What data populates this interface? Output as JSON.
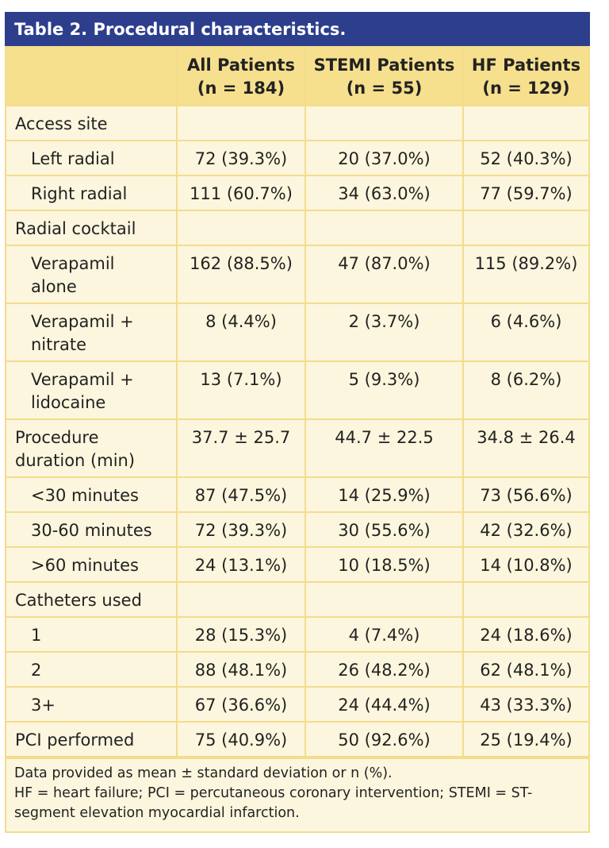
{
  "title": "Table 2. Procedural characteristics.",
  "header": [
    {
      "title": "All Patients",
      "n": "(n = 184)"
    },
    {
      "title": "STEMI Patients",
      "n": "(n = 55)"
    },
    {
      "title": "HF Patients",
      "n": "(n = 129)"
    }
  ],
  "sections": [
    {
      "label": "Access site",
      "rows": [
        {
          "label": "Left radial",
          "values": [
            "72 (39.3%)",
            "20 (37.0%)",
            "52 (40.3%)"
          ]
        },
        {
          "label": "Right radial",
          "values": [
            "111 (60.7%)",
            "34 (63.0%)",
            "77 (59.7%)"
          ]
        }
      ]
    },
    {
      "label": "Radial cocktail",
      "rows": [
        {
          "label": "Verapamil alone",
          "values": [
            "162 (88.5%)",
            "47 (87.0%)",
            "115 (89.2%)"
          ]
        },
        {
          "label": "Verapamil + nitrate",
          "values": [
            "8 (4.4%)",
            "2 (3.7%)",
            "6 (4.6%)"
          ]
        },
        {
          "label": "Verapamil + lidocaine",
          "values": [
            "13 (7.1%)",
            "5 (9.3%)",
            "8 (6.2%)"
          ]
        }
      ]
    },
    {
      "label": "Procedure duration (min)",
      "values": [
        "37.7 ± 25.7",
        "44.7 ± 22.5",
        "34.8 ± 26.4"
      ],
      "rows": [
        {
          "label": "<30 minutes",
          "values": [
            "87 (47.5%)",
            "14 (25.9%)",
            "73 (56.6%)"
          ]
        },
        {
          "label": "30-60 minutes",
          "values": [
            "72 (39.3%)",
            "30 (55.6%)",
            "42 (32.6%)"
          ]
        },
        {
          "label": ">60 minutes",
          "values": [
            "24 (13.1%)",
            "10 (18.5%)",
            "14 (10.8%)"
          ]
        }
      ]
    },
    {
      "label": "Catheters used",
      "rows": [
        {
          "label": "1",
          "values": [
            "28 (15.3%)",
            "4 (7.4%)",
            "24 (18.6%)"
          ]
        },
        {
          "label": "2",
          "values": [
            "88 (48.1%)",
            "26 (48.2%)",
            "62 (48.1%)"
          ]
        },
        {
          "label": "3+",
          "values": [
            "67 (36.6%)",
            "24 (44.4%)",
            "43 (33.3%)"
          ]
        }
      ]
    },
    {
      "label": "PCI performed",
      "values": [
        "75 (40.9%)",
        "50 (92.6%)",
        "25 (19.4%)"
      ]
    }
  ],
  "footnotes": [
    "Data provided as mean ± standard deviation or n (%).",
    "HF = heart failure; PCI = percutaneous coronary intervention; STEMI = ST-segment elevation myocardial infarction."
  ]
}
